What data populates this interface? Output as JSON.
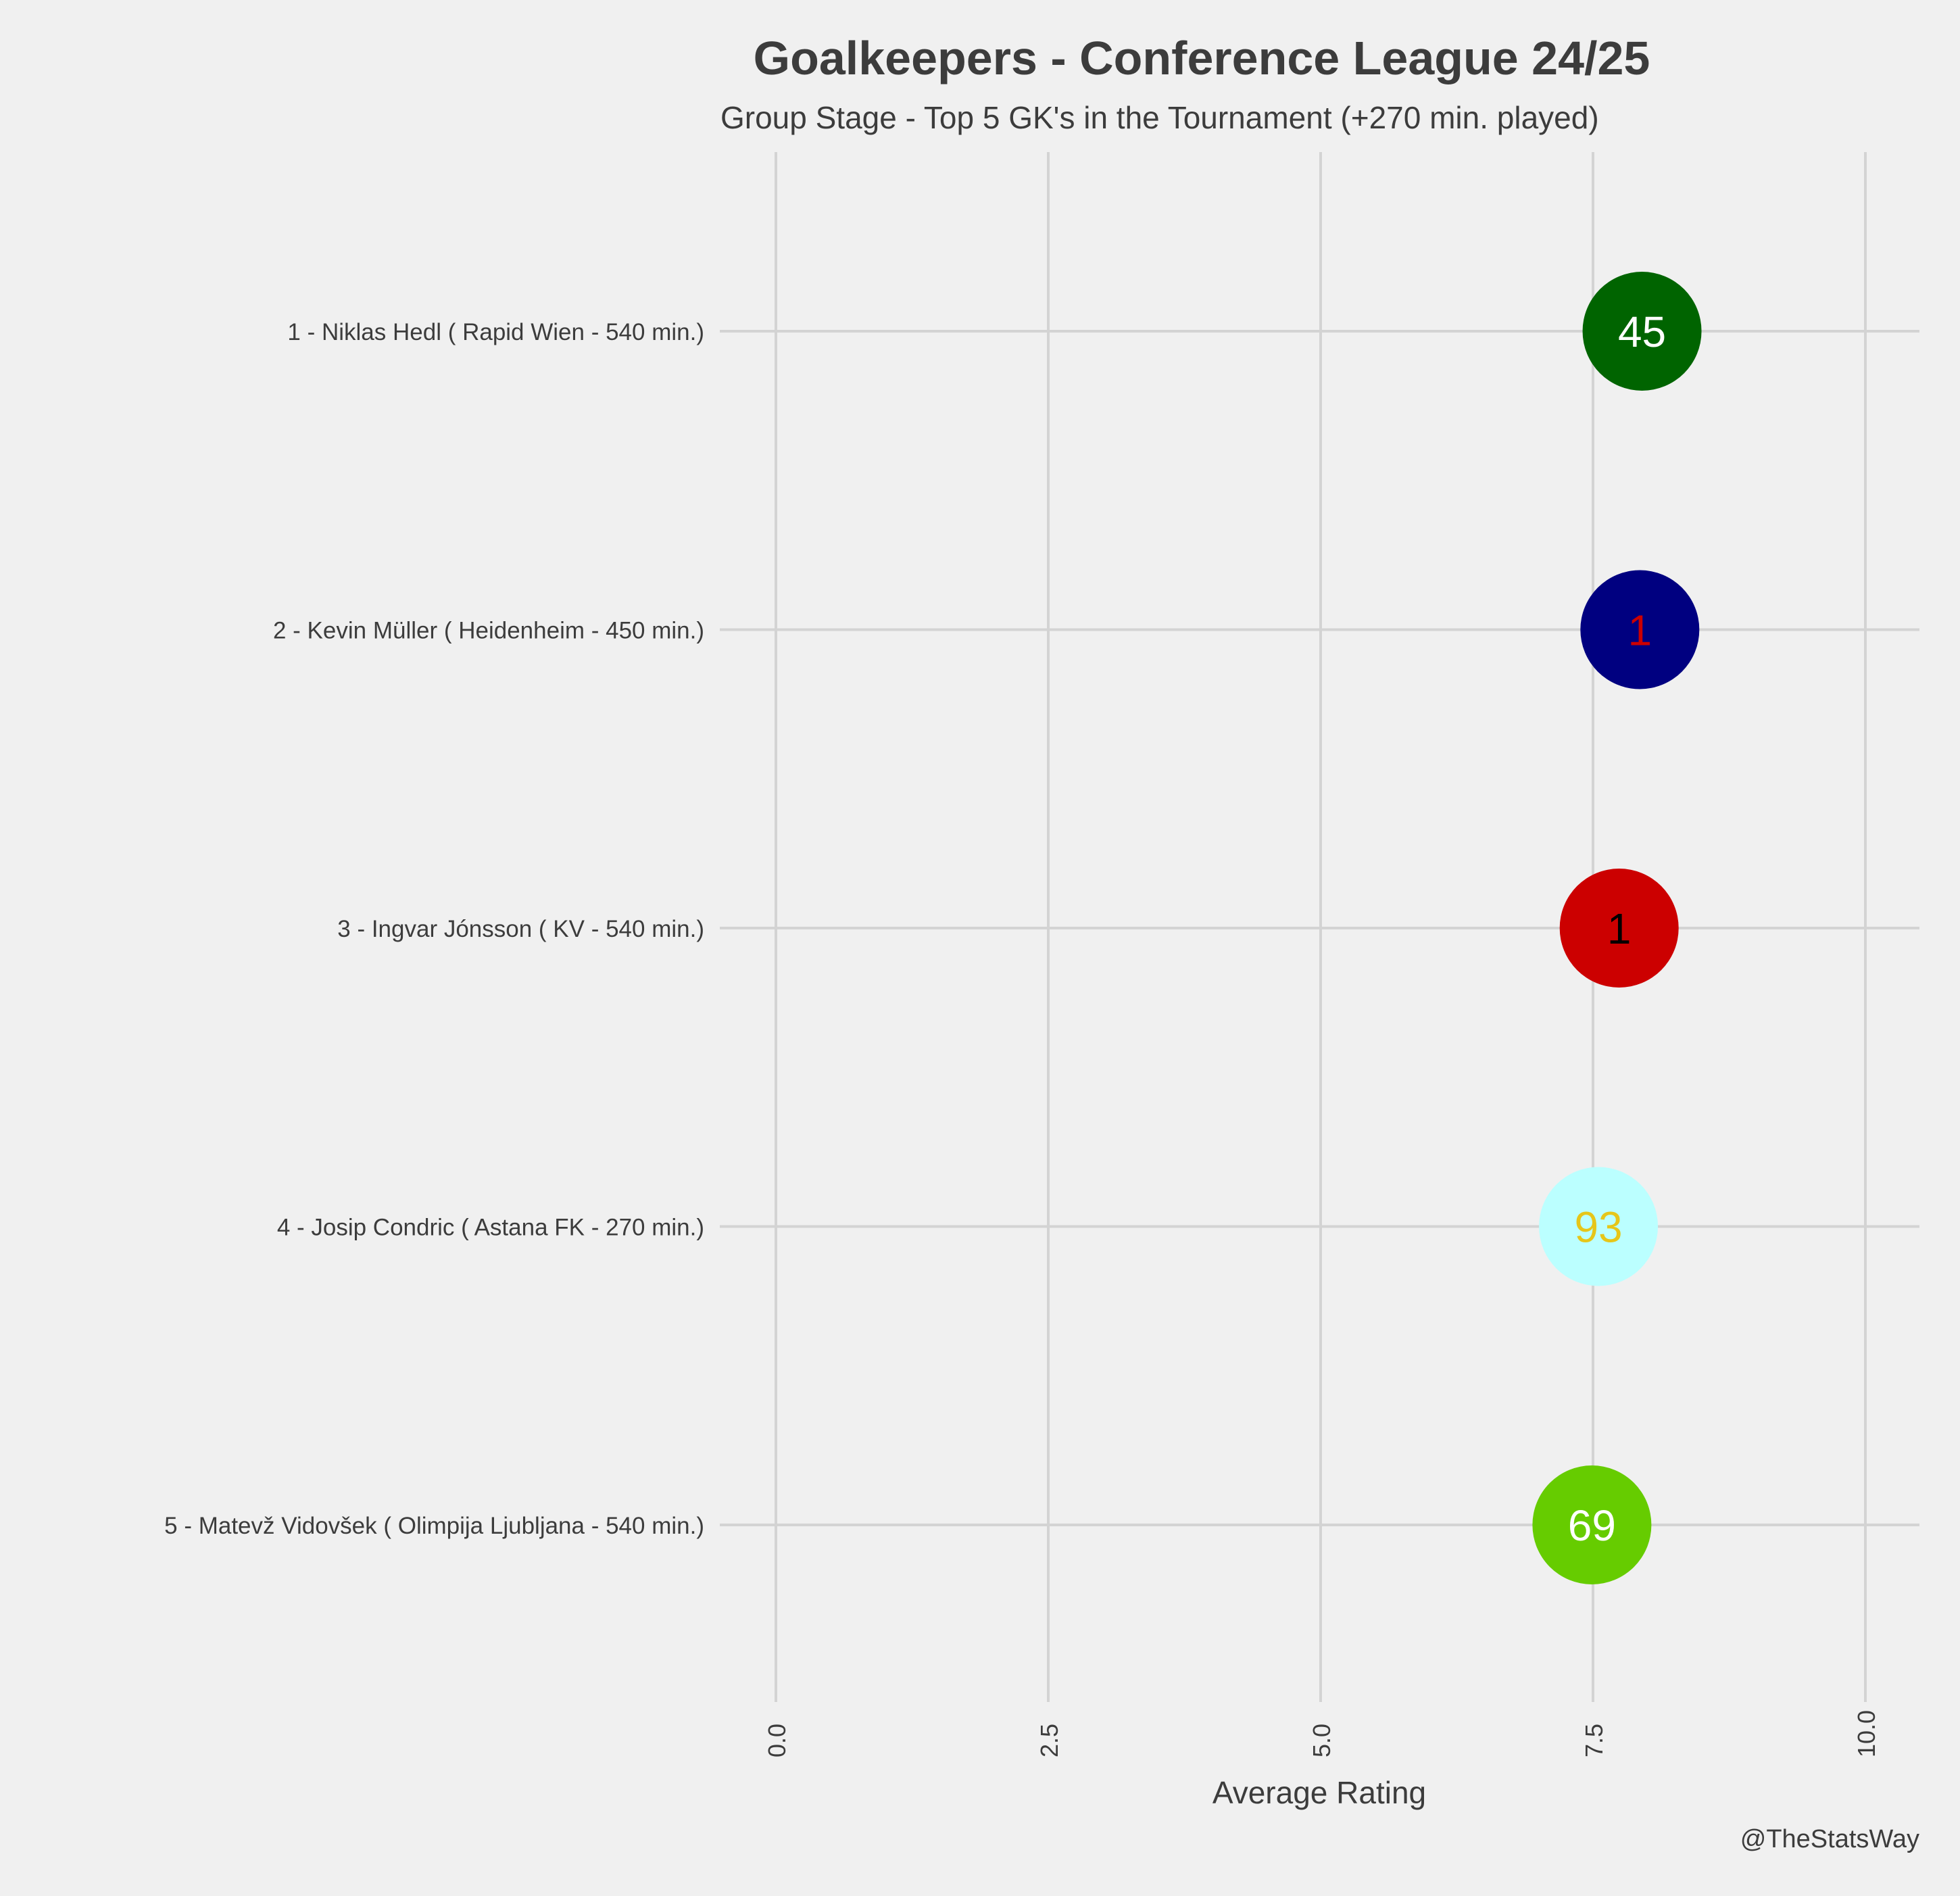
{
  "chart_data": {
    "type": "scatter",
    "title": "Goalkeepers - Conference League 24/25",
    "subtitle": "Group Stage - Top 5 GK's in the Tournament (+270 min. played)",
    "xlabel": "Average Rating",
    "ylabel": "",
    "xlim": [
      0,
      10.5
    ],
    "xticks": [
      "0.0",
      "2.5",
      "5.0",
      "7.5",
      "10.0"
    ],
    "xtick_values": [
      0,
      2.5,
      5.0,
      7.5,
      10.0
    ],
    "grid": true,
    "credit": "@TheStatsWay",
    "background": "#f0f0f0",
    "grid_color": "#d3d3d3",
    "text_color": "#3c3c3c",
    "points": [
      {
        "label": "1 - Niklas Hedl  ( Rapid Wien - 540 min.)",
        "x": 7.95,
        "number": "45",
        "fill": "#006400",
        "text_color": "#ffffff"
      },
      {
        "label": "2 - Kevin Müller  ( Heidenheim - 450 min.)",
        "x": 7.93,
        "number": "1",
        "fill": "#000080",
        "text_color": "#cc0000"
      },
      {
        "label": "3 - Ingvar Jónsson  ( KV - 540 min.)",
        "x": 7.74,
        "number": "1",
        "fill": "#cc0000",
        "text_color": "#000000"
      },
      {
        "label": "4 - Josip Condric  ( Astana FK - 270 min.)",
        "x": 7.55,
        "number": "93",
        "fill": "#bbffff",
        "text_color": "#e6c619"
      },
      {
        "label": "5 - Matevž Vidovšek  ( Olimpija Ljubljana - 540 min.)",
        "x": 7.49,
        "number": "69",
        "fill": "#66cc00",
        "text_color": "#ffffff"
      }
    ]
  }
}
